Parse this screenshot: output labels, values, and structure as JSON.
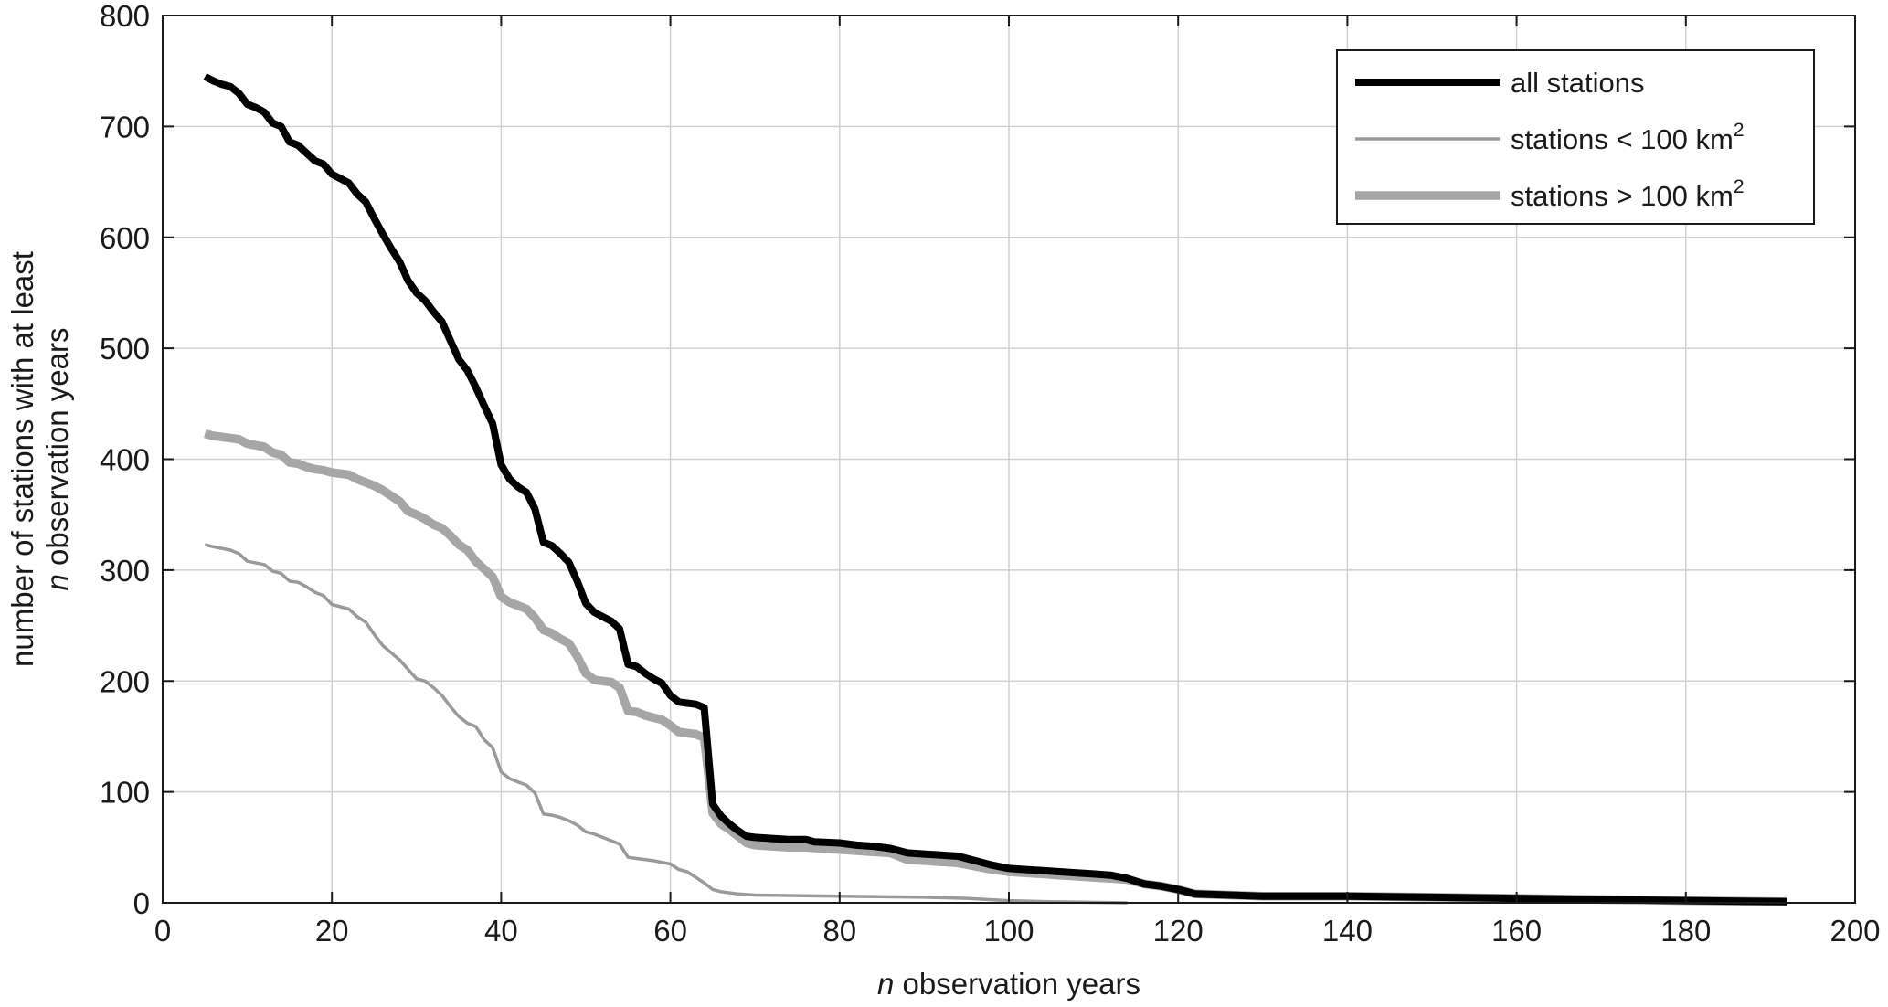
{
  "chart_data": {
    "type": "line",
    "title": "",
    "xlabel": {
      "italic": "n",
      "rest": " observation years"
    },
    "ylabel": {
      "line1": "number of stations with at least",
      "line2_italic": "n",
      "line2_rest": " observation years"
    },
    "xlim": [
      0,
      200
    ],
    "ylim": [
      0,
      800
    ],
    "xticks": [
      0,
      20,
      40,
      60,
      80,
      100,
      120,
      140,
      160,
      180,
      200
    ],
    "yticks": [
      0,
      100,
      200,
      300,
      400,
      500,
      600,
      700,
      800
    ],
    "grid": true,
    "legend_position": "top-right",
    "series": [
      {
        "name": "all stations",
        "legend_text": "all stations",
        "legend_sup": "",
        "color": "#000000",
        "style": "thick",
        "points": [
          [
            5,
            745
          ],
          [
            6,
            741
          ],
          [
            7,
            738
          ],
          [
            8,
            736
          ],
          [
            9,
            730
          ],
          [
            10,
            720
          ],
          [
            11,
            717
          ],
          [
            12,
            713
          ],
          [
            13,
            703
          ],
          [
            14,
            700
          ],
          [
            15,
            686
          ],
          [
            16,
            683
          ],
          [
            17,
            676
          ],
          [
            18,
            669
          ],
          [
            19,
            666
          ],
          [
            20,
            657
          ],
          [
            21,
            653
          ],
          [
            22,
            649
          ],
          [
            23,
            639
          ],
          [
            24,
            632
          ],
          [
            25,
            617
          ],
          [
            26,
            603
          ],
          [
            27,
            590
          ],
          [
            28,
            578
          ],
          [
            29,
            561
          ],
          [
            30,
            550
          ],
          [
            31,
            543
          ],
          [
            32,
            533
          ],
          [
            33,
            524
          ],
          [
            34,
            507
          ],
          [
            35,
            490
          ],
          [
            36,
            480
          ],
          [
            37,
            465
          ],
          [
            38,
            448
          ],
          [
            39,
            432
          ],
          [
            40,
            395
          ],
          [
            41,
            382
          ],
          [
            42,
            375
          ],
          [
            43,
            370
          ],
          [
            44,
            355
          ],
          [
            45,
            325
          ],
          [
            46,
            322
          ],
          [
            47,
            315
          ],
          [
            48,
            307
          ],
          [
            49,
            290
          ],
          [
            50,
            270
          ],
          [
            51,
            262
          ],
          [
            52,
            258
          ],
          [
            53,
            254
          ],
          [
            54,
            247
          ],
          [
            55,
            215
          ],
          [
            56,
            213
          ],
          [
            57,
            207
          ],
          [
            58,
            202
          ],
          [
            59,
            198
          ],
          [
            60,
            187
          ],
          [
            61,
            181
          ],
          [
            62,
            180
          ],
          [
            63,
            179
          ],
          [
            64,
            176
          ],
          [
            65,
            89
          ],
          [
            66,
            78
          ],
          [
            67,
            71
          ],
          [
            68,
            65
          ],
          [
            69,
            60
          ],
          [
            70,
            59
          ],
          [
            72,
            58
          ],
          [
            74,
            57
          ],
          [
            76,
            57
          ],
          [
            77,
            55
          ],
          [
            80,
            54
          ],
          [
            82,
            52
          ],
          [
            84,
            51
          ],
          [
            86,
            49
          ],
          [
            88,
            45
          ],
          [
            90,
            44
          ],
          [
            92,
            43
          ],
          [
            94,
            42
          ],
          [
            96,
            38
          ],
          [
            98,
            34
          ],
          [
            100,
            31
          ],
          [
            102,
            30
          ],
          [
            104,
            29
          ],
          [
            106,
            28
          ],
          [
            108,
            27
          ],
          [
            110,
            26
          ],
          [
            112,
            25
          ],
          [
            114,
            22
          ],
          [
            116,
            17
          ],
          [
            118,
            15
          ],
          [
            120,
            12
          ],
          [
            122,
            8
          ],
          [
            126,
            7
          ],
          [
            130,
            6
          ],
          [
            140,
            6
          ],
          [
            150,
            5
          ],
          [
            160,
            4
          ],
          [
            170,
            3
          ],
          [
            180,
            2
          ],
          [
            192,
            1
          ]
        ]
      },
      {
        "name": "stations < 100 km2",
        "legend_text": "stations < 100 km",
        "legend_sup": "2",
        "color": "#9a9a9a",
        "style": "thin",
        "points": [
          [
            5,
            323
          ],
          [
            6,
            321
          ],
          [
            8,
            318
          ],
          [
            9,
            315
          ],
          [
            10,
            308
          ],
          [
            12,
            305
          ],
          [
            13,
            299
          ],
          [
            14,
            297
          ],
          [
            15,
            290
          ],
          [
            16,
            289
          ],
          [
            17,
            285
          ],
          [
            18,
            280
          ],
          [
            19,
            277
          ],
          [
            20,
            269
          ],
          [
            22,
            265
          ],
          [
            23,
            258
          ],
          [
            24,
            253
          ],
          [
            25,
            242
          ],
          [
            26,
            232
          ],
          [
            28,
            219
          ],
          [
            30,
            202
          ],
          [
            31,
            200
          ],
          [
            32,
            194
          ],
          [
            33,
            187
          ],
          [
            34,
            177
          ],
          [
            35,
            168
          ],
          [
            36,
            162
          ],
          [
            37,
            159
          ],
          [
            38,
            147
          ],
          [
            39,
            140
          ],
          [
            40,
            118
          ],
          [
            41,
            112
          ],
          [
            42,
            109
          ],
          [
            43,
            106
          ],
          [
            44,
            99
          ],
          [
            45,
            80
          ],
          [
            46,
            79
          ],
          [
            47,
            77
          ],
          [
            48,
            74
          ],
          [
            49,
            70
          ],
          [
            50,
            64
          ],
          [
            51,
            62
          ],
          [
            52,
            59
          ],
          [
            53,
            56
          ],
          [
            54,
            53
          ],
          [
            55,
            41
          ],
          [
            56,
            40
          ],
          [
            58,
            38
          ],
          [
            60,
            35
          ],
          [
            61,
            30
          ],
          [
            62,
            28
          ],
          [
            63,
            23
          ],
          [
            64,
            18
          ],
          [
            65,
            12
          ],
          [
            66,
            10
          ],
          [
            68,
            8
          ],
          [
            70,
            7
          ],
          [
            80,
            6
          ],
          [
            90,
            5
          ],
          [
            95,
            4
          ],
          [
            100,
            2
          ],
          [
            105,
            1
          ],
          [
            114,
            0
          ]
        ]
      },
      {
        "name": "stations > 100 km2",
        "legend_text": "stations > 100 km",
        "legend_sup": "2",
        "color": "#a6a6a6",
        "style": "thicker",
        "points": [
          [
            5,
            423
          ],
          [
            6,
            421
          ],
          [
            8,
            419
          ],
          [
            9,
            418
          ],
          [
            10,
            414
          ],
          [
            12,
            411
          ],
          [
            13,
            406
          ],
          [
            14,
            404
          ],
          [
            15,
            397
          ],
          [
            16,
            396
          ],
          [
            17,
            393
          ],
          [
            18,
            391
          ],
          [
            19,
            390
          ],
          [
            20,
            388
          ],
          [
            22,
            386
          ],
          [
            23,
            382
          ],
          [
            24,
            379
          ],
          [
            25,
            376
          ],
          [
            26,
            372
          ],
          [
            27,
            367
          ],
          [
            28,
            362
          ],
          [
            29,
            353
          ],
          [
            30,
            350
          ],
          [
            31,
            346
          ],
          [
            32,
            341
          ],
          [
            33,
            338
          ],
          [
            34,
            331
          ],
          [
            35,
            323
          ],
          [
            36,
            318
          ],
          [
            37,
            308
          ],
          [
            38,
            301
          ],
          [
            39,
            294
          ],
          [
            40,
            276
          ],
          [
            41,
            271
          ],
          [
            42,
            268
          ],
          [
            43,
            265
          ],
          [
            44,
            257
          ],
          [
            45,
            246
          ],
          [
            46,
            243
          ],
          [
            47,
            238
          ],
          [
            48,
            234
          ],
          [
            49,
            222
          ],
          [
            50,
            207
          ],
          [
            51,
            201
          ],
          [
            52,
            200
          ],
          [
            53,
            199
          ],
          [
            54,
            194
          ],
          [
            55,
            173
          ],
          [
            56,
            172
          ],
          [
            57,
            169
          ],
          [
            58,
            167
          ],
          [
            59,
            165
          ],
          [
            60,
            160
          ],
          [
            61,
            154
          ],
          [
            62,
            153
          ],
          [
            63,
            152
          ],
          [
            64,
            149
          ],
          [
            65,
            81
          ],
          [
            66,
            71
          ],
          [
            67,
            66
          ],
          [
            68,
            60
          ],
          [
            69,
            54
          ],
          [
            70,
            52
          ],
          [
            72,
            51
          ],
          [
            74,
            50
          ],
          [
            76,
            50
          ],
          [
            78,
            49
          ],
          [
            80,
            48
          ],
          [
            82,
            47
          ],
          [
            84,
            46
          ],
          [
            86,
            45
          ],
          [
            88,
            39
          ],
          [
            90,
            38
          ],
          [
            92,
            37
          ],
          [
            94,
            36
          ],
          [
            96,
            33
          ],
          [
            98,
            30
          ],
          [
            100,
            28
          ],
          [
            102,
            27
          ],
          [
            104,
            26
          ],
          [
            106,
            25
          ],
          [
            108,
            24
          ],
          [
            110,
            23
          ],
          [
            112,
            22
          ],
          [
            114,
            21
          ],
          [
            116,
            17
          ],
          [
            118,
            15
          ],
          [
            120,
            12
          ],
          [
            122,
            8
          ],
          [
            126,
            7
          ],
          [
            130,
            6
          ],
          [
            140,
            6
          ],
          [
            150,
            5
          ],
          [
            160,
            4
          ],
          [
            170,
            3
          ],
          [
            180,
            2
          ],
          [
            192,
            1
          ]
        ]
      }
    ]
  }
}
